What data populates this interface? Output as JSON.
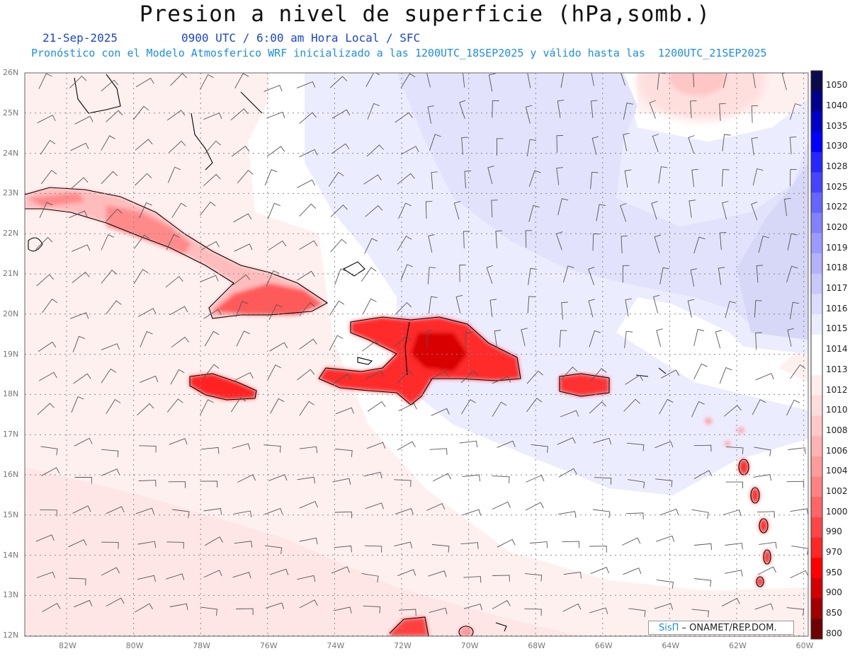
{
  "header": {
    "title": "Presion a nivel de superficie (hPa,somb.)",
    "date": "21-Sep-2025",
    "time": "0900 UTC / 6:00 am Hora Local / SFC",
    "forecast_line": "Pronóstico con el Modelo Atmosferico WRF inicializado a las 1200UTC_18SEP2025 y válido hasta las  1200UTC_21SEP2025"
  },
  "axes": {
    "lat_labels": [
      "26N",
      "25N",
      "24N",
      "23N",
      "22N",
      "21N",
      "20N",
      "19N",
      "18N",
      "17N",
      "16N",
      "15N",
      "14N",
      "13N",
      "12N"
    ],
    "lon_labels": [
      "82W",
      "80W",
      "78W",
      "76W",
      "74W",
      "72W",
      "70W",
      "68W",
      "66W",
      "64W",
      "62W",
      "60W"
    ]
  },
  "colorbar": {
    "levels": [
      "1050",
      "1040",
      "1035",
      "1030",
      "1028",
      "1025",
      "1022",
      "1020",
      "1019",
      "1018",
      "1017",
      "1016",
      "1015",
      "1014",
      "1013",
      "1012",
      "1010",
      "1008",
      "1006",
      "1004",
      "1002",
      "1000",
      "990",
      "970",
      "950",
      "900",
      "850",
      "800"
    ],
    "colors": [
      "#0a0a4d",
      "#00008b",
      "#0000c8",
      "#0000ff",
      "#2626ff",
      "#4545ff",
      "#6565ff",
      "#8282ff",
      "#9b9bff",
      "#b2b2ff",
      "#c8c8ff",
      "#dcdcff",
      "#ececff",
      "#ffffff",
      "#ffffff",
      "#ffecec",
      "#ffdcdc",
      "#ffc8c8",
      "#ffb2b2",
      "#ff9b9b",
      "#ff8282",
      "#ff6565",
      "#ff4545",
      "#ff2626",
      "#ff0000",
      "#d40000",
      "#a00000",
      "#6e0000"
    ]
  },
  "credit": {
    "brand": "SisΠ",
    "text": " – ONAMET/REP.DOM."
  }
}
